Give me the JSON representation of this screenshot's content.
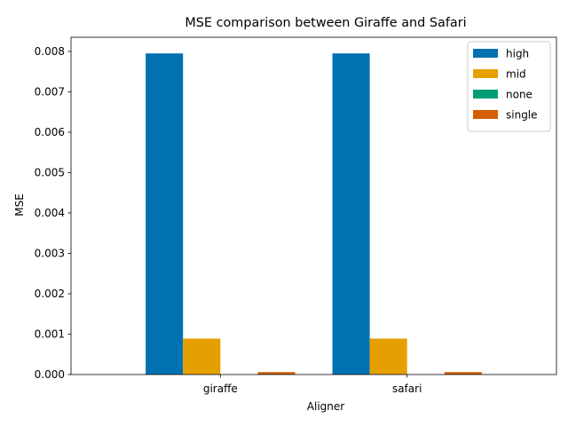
{
  "chart_data": {
    "type": "bar",
    "title": "MSE comparison between Giraffe and Safari",
    "xlabel": "Aligner",
    "ylabel": "MSE",
    "categories": [
      "giraffe",
      "safari"
    ],
    "ylim": [
      0,
      0.00835
    ],
    "yticks": [
      "0.000",
      "0.001",
      "0.002",
      "0.003",
      "0.004",
      "0.005",
      "0.006",
      "0.007",
      "0.008"
    ],
    "ytick_values": [
      0,
      0.001,
      0.002,
      0.003,
      0.004,
      0.005,
      0.006,
      0.007,
      0.008
    ],
    "grid": false,
    "legend_position": "top-right",
    "series": [
      {
        "name": "high",
        "color": "#0072b2",
        "values": [
          0.00795,
          0.00795
        ]
      },
      {
        "name": "mid",
        "color": "#e69f00",
        "values": [
          0.00089,
          0.00089
        ]
      },
      {
        "name": "none",
        "color": "#009e73",
        "values": [
          0.0,
          0.0
        ]
      },
      {
        "name": "single",
        "color": "#d55e00",
        "values": [
          6e-05,
          6e-05
        ]
      }
    ]
  }
}
